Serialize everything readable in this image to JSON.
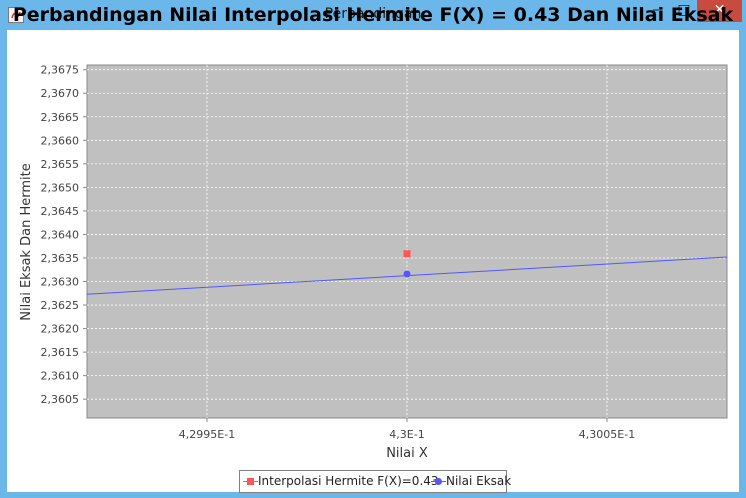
{
  "window": {
    "title": "Perbandingan",
    "minimize_label": "–",
    "maximize_label": "□",
    "close_label": "✕"
  },
  "chart_data": {
    "type": "line",
    "title": "Perbandingan Nilai Interpolasi Hermite F(X) = 0.43 Dan Nilai Eksak",
    "xlabel": "Nilai X",
    "ylabel": "Nilai Eksak Dan Hermite",
    "xlim": [
      0.42992,
      0.43008
    ],
    "ylim": [
      2.3601,
      2.3676
    ],
    "x_ticks": [
      0.42995,
      0.43,
      0.43005
    ],
    "x_tick_labels": [
      "4,2995E-1",
      "4,3E-1",
      "4,3005E-1"
    ],
    "y_ticks": [
      2.3605,
      2.361,
      2.3615,
      2.362,
      2.3625,
      2.363,
      2.3635,
      2.364,
      2.3645,
      2.365,
      2.3655,
      2.366,
      2.3665,
      2.367,
      2.3675
    ],
    "y_tick_labels": [
      "2,3605",
      "2,3610",
      "2,3615",
      "2,3620",
      "2,3625",
      "2,3630",
      "2,3635",
      "2,3640",
      "2,3645",
      "2,3650",
      "2,3655",
      "2,3660",
      "2,3665",
      "2,3670",
      "2,3675"
    ],
    "grid": true,
    "legend_position": "bottom",
    "series": [
      {
        "name": "Interpolasi Hermite F(X)=0.43",
        "color": "#ff5555",
        "marker": "square",
        "points": [
          [
            0.43,
            2.36359
          ]
        ]
      },
      {
        "name": "Nilai Eksak",
        "color": "#5555ff",
        "marker": "circle",
        "line": [
          [
            0.42992,
            2.36273
          ],
          [
            0.43008,
            2.36352
          ]
        ],
        "points": [
          [
            0.43,
            2.36316
          ]
        ]
      }
    ]
  }
}
